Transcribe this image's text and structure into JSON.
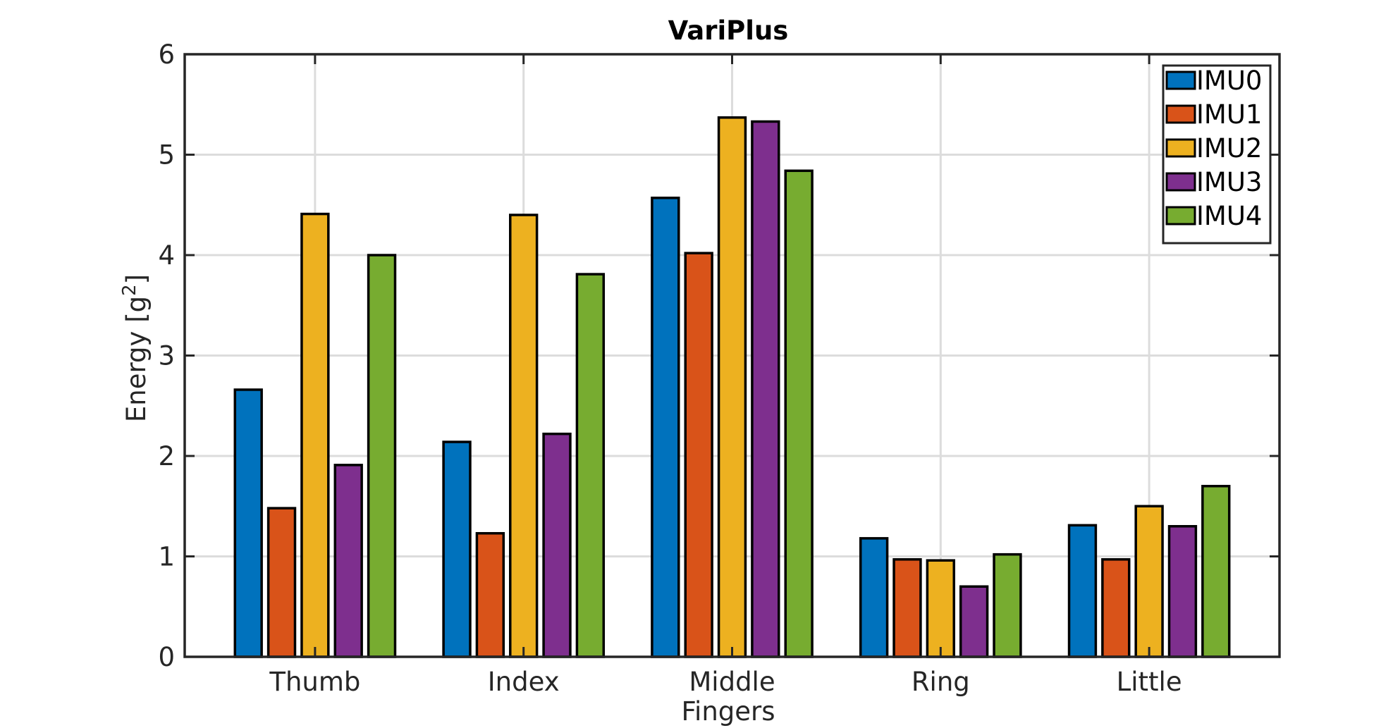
{
  "chart_data": {
    "type": "bar",
    "title": "VariPlus",
    "xlabel": "Fingers",
    "ylabel": "Energy [g",
    "ylabel_sup": "2",
    "ylabel_suffix": "]",
    "categories": [
      "Thumb",
      "Index",
      "Middle",
      "Ring",
      "Little"
    ],
    "series": [
      {
        "name": "IMU0",
        "color": "#0072bd",
        "values": [
          2.66,
          2.14,
          4.57,
          1.18,
          1.31
        ]
      },
      {
        "name": "IMU1",
        "color": "#d95319",
        "values": [
          1.48,
          1.23,
          4.02,
          0.97,
          0.97
        ]
      },
      {
        "name": "IMU2",
        "color": "#edb120",
        "values": [
          4.41,
          4.4,
          5.37,
          0.96,
          1.5
        ]
      },
      {
        "name": "IMU3",
        "color": "#7e2f8e",
        "values": [
          1.91,
          2.22,
          5.33,
          0.7,
          1.3
        ]
      },
      {
        "name": "IMU4",
        "color": "#77ac30",
        "values": [
          4.0,
          3.81,
          4.84,
          1.02,
          1.7
        ]
      }
    ],
    "ylim": [
      0,
      6
    ],
    "yticks": [
      0,
      1,
      2,
      3,
      4,
      5,
      6
    ],
    "grid": true,
    "legend_position": "top-right"
  }
}
